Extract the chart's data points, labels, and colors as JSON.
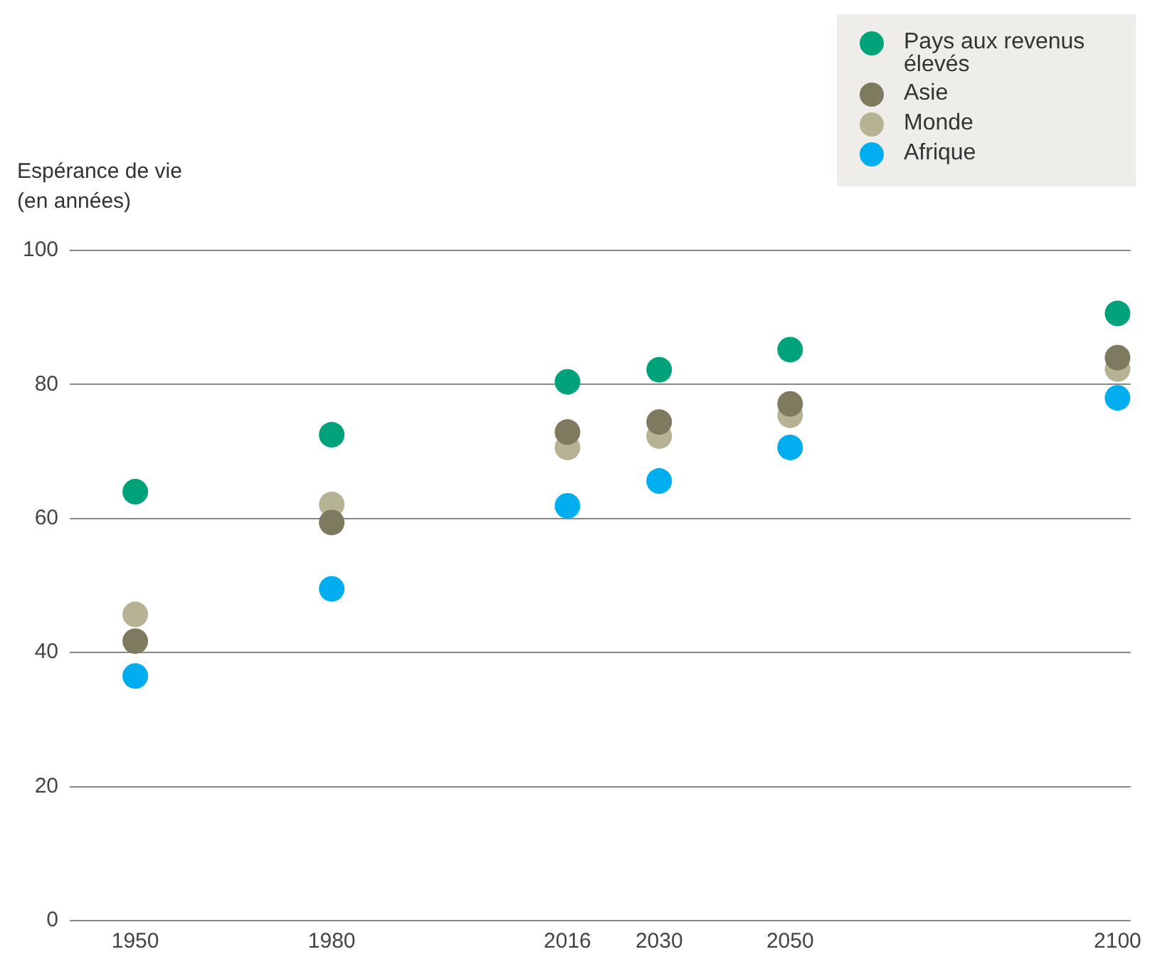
{
  "chart_data": {
    "type": "scatter",
    "ylabel": "Espérance de vie\n(en années)",
    "x": [
      1950,
      1980,
      2016,
      2030,
      2050,
      2100
    ],
    "series": [
      {
        "name": "Pays aux revenus élevés",
        "color": "#00a27a",
        "values": [
          64,
          72.5,
          80.4,
          82.2,
          85.2,
          90.6
        ]
      },
      {
        "name": "Asie",
        "color": "#7d7a5f",
        "values": [
          41.7,
          59.4,
          72.9,
          74.4,
          77.1,
          84
        ]
      },
      {
        "name": "Monde",
        "color": "#b5b393",
        "values": [
          45.7,
          62.1,
          70.6,
          72.3,
          75.4,
          82.3
        ]
      },
      {
        "name": "Afrique",
        "color": "#00aeef",
        "values": [
          36.5,
          49.5,
          61.9,
          65.6,
          70.6,
          78
        ]
      }
    ],
    "xlim": [
      1940,
      2102
    ],
    "xticks": [
      1950,
      1980,
      2016,
      2030,
      2050,
      2100
    ],
    "ylim": [
      0,
      100
    ],
    "yticks": [
      0,
      20,
      40,
      60,
      80,
      100
    ],
    "grid": "y",
    "legend": "top right",
    "marker": "circle"
  }
}
